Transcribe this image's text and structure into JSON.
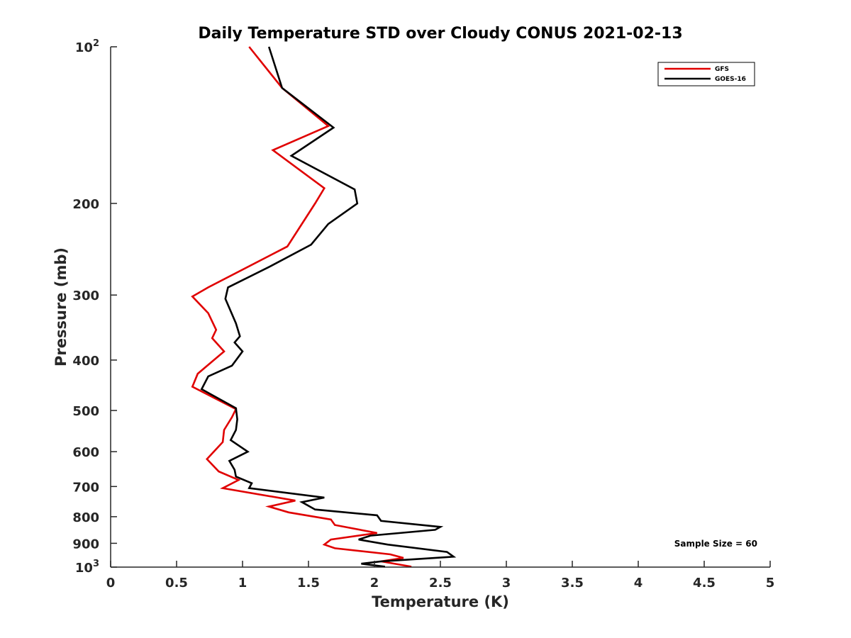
{
  "chart_data": {
    "type": "line",
    "title": "Daily Temperature STD over Cloudy CONUS 2021-02-13",
    "xlabel": "Temperature (K)",
    "ylabel": "Pressure (mb)",
    "xlim": [
      0,
      5
    ],
    "ylim": [
      100,
      1000
    ],
    "y_scale": "log",
    "y_reversed": true,
    "grid": false,
    "legend_position": "top-right",
    "x_ticks": [
      0,
      0.5,
      1,
      1.5,
      2,
      2.5,
      3,
      3.5,
      4,
      4.5,
      5
    ],
    "x_tick_labels": [
      "0",
      "0.5",
      "1",
      "1.5",
      "2",
      "2.5",
      "3",
      "3.5",
      "4",
      "4.5",
      "5"
    ],
    "y_ticks": [
      {
        "value": 100,
        "base": "10",
        "exp": "2",
        "label": ""
      },
      {
        "value": 200,
        "label": "200"
      },
      {
        "value": 300,
        "label": "300"
      },
      {
        "value": 400,
        "label": "400"
      },
      {
        "value": 500,
        "label": "500"
      },
      {
        "value": 600,
        "label": "600"
      },
      {
        "value": 700,
        "label": "700"
      },
      {
        "value": 800,
        "label": "800"
      },
      {
        "value": 900,
        "label": "900"
      },
      {
        "value": 1000,
        "base": "10",
        "exp": "3",
        "label": ""
      }
    ],
    "annotation": "Sample Size = 60",
    "series": [
      {
        "name": "GFS",
        "color": "#e00000",
        "points": [
          [
            1.05,
            100
          ],
          [
            1.3,
            120
          ],
          [
            1.65,
            142
          ],
          [
            1.23,
            158
          ],
          [
            1.62,
            187
          ],
          [
            1.55,
            200
          ],
          [
            1.34,
            242
          ],
          [
            0.74,
            290
          ],
          [
            0.62,
            302
          ],
          [
            0.74,
            325
          ],
          [
            0.8,
            350
          ],
          [
            0.77,
            363
          ],
          [
            0.86,
            385
          ],
          [
            0.66,
            425
          ],
          [
            0.62,
            450
          ],
          [
            0.95,
            497
          ],
          [
            0.92,
            515
          ],
          [
            0.86,
            545
          ],
          [
            0.85,
            575
          ],
          [
            0.73,
            620
          ],
          [
            0.82,
            655
          ],
          [
            0.97,
            680
          ],
          [
            0.85,
            705
          ],
          [
            1.4,
            745
          ],
          [
            1.2,
            765
          ],
          [
            1.35,
            785
          ],
          [
            1.67,
            810
          ],
          [
            1.7,
            830
          ],
          [
            2.02,
            860
          ],
          [
            1.67,
            885
          ],
          [
            1.62,
            905
          ],
          [
            1.7,
            920
          ],
          [
            2.12,
            945
          ],
          [
            2.22,
            960
          ],
          [
            2.05,
            975
          ],
          [
            2.28,
            998
          ]
        ]
      },
      {
        "name": "GOES-16",
        "color": "#000000",
        "points": [
          [
            1.2,
            100
          ],
          [
            1.3,
            120
          ],
          [
            1.69,
            143
          ],
          [
            1.37,
            162
          ],
          [
            1.85,
            188
          ],
          [
            1.87,
            200
          ],
          [
            1.65,
            219
          ],
          [
            1.52,
            240
          ],
          [
            1.2,
            265
          ],
          [
            0.89,
            290
          ],
          [
            0.87,
            305
          ],
          [
            0.95,
            340
          ],
          [
            0.98,
            360
          ],
          [
            0.94,
            370
          ],
          [
            1.0,
            385
          ],
          [
            0.92,
            410
          ],
          [
            0.74,
            430
          ],
          [
            0.69,
            455
          ],
          [
            0.95,
            495
          ],
          [
            0.96,
            520
          ],
          [
            0.95,
            545
          ],
          [
            0.91,
            570
          ],
          [
            1.04,
            600
          ],
          [
            0.9,
            625
          ],
          [
            0.94,
            650
          ],
          [
            0.95,
            670
          ],
          [
            1.07,
            690
          ],
          [
            1.05,
            705
          ],
          [
            1.62,
            735
          ],
          [
            1.45,
            750
          ],
          [
            1.55,
            775
          ],
          [
            2.02,
            795
          ],
          [
            2.05,
            815
          ],
          [
            2.5,
            837
          ],
          [
            2.46,
            848
          ],
          [
            1.97,
            870
          ],
          [
            1.88,
            885
          ],
          [
            2.1,
            905
          ],
          [
            2.55,
            935
          ],
          [
            2.6,
            955
          ],
          [
            2.05,
            975
          ],
          [
            1.9,
            985
          ],
          [
            2.08,
            998
          ]
        ]
      }
    ]
  }
}
